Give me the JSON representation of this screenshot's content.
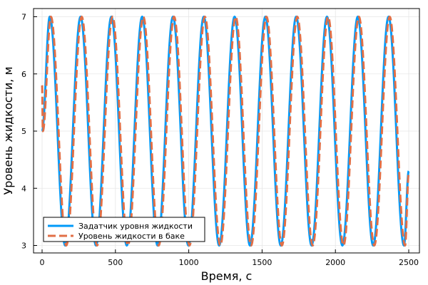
{
  "chart_data": {
    "type": "line",
    "title": "",
    "xlabel": "Время, с",
    "ylabel": "Уровень жидкости, м",
    "xlim": [
      0,
      2500
    ],
    "ylim": [
      2.95,
      7.05
    ],
    "x_ticks": [
      0,
      500,
      1000,
      1500,
      2000,
      2500
    ],
    "y_ticks": [
      3,
      4,
      5,
      6,
      7
    ],
    "grid": true,
    "legend_position": "bottom-left",
    "period": 210,
    "series": [
      {
        "name": "Задатчик уровня жидкости",
        "color": "#009af9",
        "style": "solid",
        "x": [
          0,
          52.5,
          157.5,
          262.5,
          367.5,
          472.5,
          577.5,
          682.5,
          787.5,
          892.5,
          997.5,
          1102.5,
          1207.5,
          1312.5,
          1417.5,
          1522.5,
          1627.5,
          1732.5,
          1837.5,
          1942.5,
          2047.5,
          2152.5,
          2257.5,
          2362.5,
          2467.5,
          2500
        ],
        "y": [
          5.0,
          7.0,
          3.0,
          7.0,
          3.0,
          7.0,
          3.0,
          7.0,
          3.0,
          7.0,
          3.0,
          7.0,
          3.0,
          7.0,
          3.0,
          7.0,
          3.0,
          7.0,
          3.0,
          7.0,
          3.0,
          7.0,
          3.0,
          7.0,
          3.0,
          4.3
        ]
      },
      {
        "name": "Уровень жидкости в баке",
        "color": "#e26f46",
        "style": "dashed",
        "x": [
          0,
          5,
          60,
          165,
          270,
          375,
          480,
          585,
          690,
          795,
          900,
          1005,
          1110,
          1215,
          1320,
          1425,
          1530,
          1635,
          1740,
          1845,
          1950,
          2055,
          2160,
          2265,
          2370,
          2475,
          2500
        ],
        "y": [
          5.8,
          5.0,
          7.0,
          3.0,
          7.0,
          3.0,
          7.0,
          3.0,
          7.0,
          3.0,
          7.0,
          3.0,
          7.0,
          3.0,
          7.0,
          3.0,
          7.0,
          3.0,
          7.0,
          3.0,
          7.0,
          3.0,
          7.0,
          3.0,
          7.0,
          3.0,
          4.25
        ]
      }
    ]
  }
}
